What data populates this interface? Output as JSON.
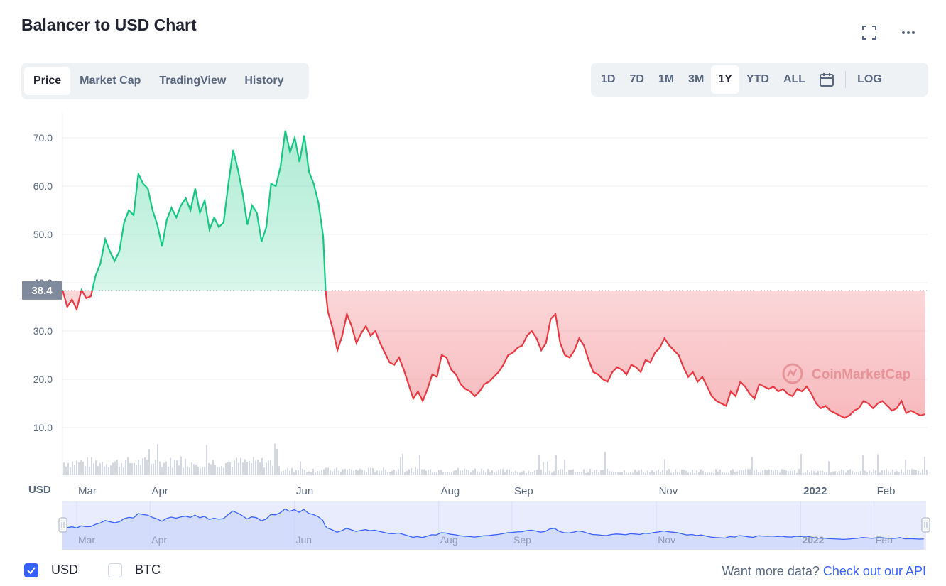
{
  "header": {
    "title": "Balancer to USD Chart",
    "fullscreen_icon": "fullscreen-icon",
    "more_icon": "more-dots-icon"
  },
  "tabs": [
    {
      "label": "Price",
      "active": true
    },
    {
      "label": "Market Cap",
      "active": false
    },
    {
      "label": "TradingView",
      "active": false
    },
    {
      "label": "History",
      "active": false
    }
  ],
  "ranges": [
    {
      "label": "1D",
      "active": false
    },
    {
      "label": "7D",
      "active": false
    },
    {
      "label": "1M",
      "active": false
    },
    {
      "label": "3M",
      "active": false
    },
    {
      "label": "1Y",
      "active": true
    },
    {
      "label": "YTD",
      "active": false
    },
    {
      "label": "ALL",
      "active": false
    }
  ],
  "calendar_icon": "calendar-icon",
  "log_label": "LOG",
  "chart_data": {
    "type": "area",
    "y_unit": "USD",
    "reference_value": 38.4,
    "reference_label": "38.4",
    "ylim": [
      0,
      75
    ],
    "y_ticks": [
      10,
      20,
      30,
      40,
      50,
      60,
      70
    ],
    "y_tick_labels": [
      "10.0",
      "20.0",
      "30.0",
      "40.0",
      "50.0",
      "60.0",
      "70.0"
    ],
    "x_tick_labels": [
      "Mar",
      "Apr",
      "Jun",
      "Aug",
      "Sep",
      "Nov",
      "2022",
      "Feb"
    ],
    "x_tick_dates": [
      "2021-03-01",
      "2021-04-01",
      "2021-06-01",
      "2021-08-01",
      "2021-09-01",
      "2021-11-01",
      "2022-01-01",
      "2022-02-01"
    ],
    "x_range": [
      "2021-02-23",
      "2022-02-23"
    ],
    "up_color": "#16c784",
    "down_color": "#ea3943",
    "watermark": "CoinMarketCap",
    "series": [
      {
        "points": [
          [
            "2021-02-23",
            38.5
          ],
          [
            "2021-02-25",
            35.0
          ],
          [
            "2021-02-27",
            36.5
          ],
          [
            "2021-03-01",
            34.5
          ],
          [
            "2021-03-03",
            38.5
          ],
          [
            "2021-03-05",
            36.8
          ],
          [
            "2021-03-07",
            37.2
          ],
          [
            "2021-03-09",
            41.5
          ],
          [
            "2021-03-11",
            44.0
          ],
          [
            "2021-03-13",
            49.0
          ],
          [
            "2021-03-15",
            46.5
          ],
          [
            "2021-03-17",
            44.5
          ],
          [
            "2021-03-19",
            46.5
          ],
          [
            "2021-03-21",
            52.5
          ],
          [
            "2021-03-23",
            55.0
          ],
          [
            "2021-03-25",
            54.0
          ],
          [
            "2021-03-27",
            62.5
          ],
          [
            "2021-03-29",
            60.5
          ],
          [
            "2021-03-31",
            59.5
          ],
          [
            "2021-04-02",
            55.0
          ],
          [
            "2021-04-04",
            52.0
          ],
          [
            "2021-04-06",
            47.5
          ],
          [
            "2021-04-08",
            53.0
          ],
          [
            "2021-04-10",
            55.5
          ],
          [
            "2021-04-12",
            53.5
          ],
          [
            "2021-04-14",
            56.0
          ],
          [
            "2021-04-16",
            57.5
          ],
          [
            "2021-04-18",
            55.0
          ],
          [
            "2021-04-20",
            59.5
          ],
          [
            "2021-04-22",
            54.5
          ],
          [
            "2021-04-24",
            57.0
          ],
          [
            "2021-04-26",
            51.0
          ],
          [
            "2021-04-28",
            53.5
          ],
          [
            "2021-04-30",
            51.5
          ],
          [
            "2021-05-02",
            52.5
          ],
          [
            "2021-05-04",
            60.5
          ],
          [
            "2021-05-06",
            67.5
          ],
          [
            "2021-05-08",
            63.5
          ],
          [
            "2021-05-10",
            58.5
          ],
          [
            "2021-05-12",
            52.0
          ],
          [
            "2021-05-14",
            56.0
          ],
          [
            "2021-05-16",
            54.5
          ],
          [
            "2021-05-18",
            48.5
          ],
          [
            "2021-05-20",
            51.5
          ],
          [
            "2021-05-22",
            60.5
          ],
          [
            "2021-05-24",
            60.0
          ],
          [
            "2021-05-26",
            64.0
          ],
          [
            "2021-05-28",
            71.5
          ],
          [
            "2021-05-30",
            67.0
          ],
          [
            "2021-06-01",
            70.0
          ],
          [
            "2021-06-03",
            65.0
          ],
          [
            "2021-06-05",
            70.5
          ],
          [
            "2021-06-07",
            63.0
          ],
          [
            "2021-06-09",
            60.5
          ],
          [
            "2021-06-11",
            56.5
          ],
          [
            "2021-06-13",
            49.5
          ],
          [
            "2021-06-14",
            38.5
          ],
          [
            "2021-06-15",
            34.0
          ],
          [
            "2021-06-17",
            30.5
          ],
          [
            "2021-06-19",
            26.0
          ],
          [
            "2021-06-21",
            29.0
          ],
          [
            "2021-06-23",
            33.5
          ],
          [
            "2021-06-25",
            31.0
          ],
          [
            "2021-06-27",
            27.5
          ],
          [
            "2021-06-29",
            29.5
          ],
          [
            "2021-07-01",
            31.0
          ],
          [
            "2021-07-03",
            29.0
          ],
          [
            "2021-07-05",
            30.0
          ],
          [
            "2021-07-07",
            27.5
          ],
          [
            "2021-07-09",
            25.5
          ],
          [
            "2021-07-11",
            23.5
          ],
          [
            "2021-07-13",
            23.0
          ],
          [
            "2021-07-15",
            24.5
          ],
          [
            "2021-07-17",
            22.0
          ],
          [
            "2021-07-19",
            19.0
          ],
          [
            "2021-07-21",
            16.0
          ],
          [
            "2021-07-23",
            17.5
          ],
          [
            "2021-07-25",
            15.5
          ],
          [
            "2021-07-27",
            18.0
          ],
          [
            "2021-07-29",
            21.0
          ],
          [
            "2021-07-31",
            20.5
          ],
          [
            "2021-08-02",
            25.0
          ],
          [
            "2021-08-04",
            24.5
          ],
          [
            "2021-08-06",
            22.0
          ],
          [
            "2021-08-08",
            21.0
          ],
          [
            "2021-08-10",
            19.0
          ],
          [
            "2021-08-12",
            18.0
          ],
          [
            "2021-08-14",
            17.5
          ],
          [
            "2021-08-16",
            16.5
          ],
          [
            "2021-08-18",
            17.5
          ],
          [
            "2021-08-20",
            19.0
          ],
          [
            "2021-08-22",
            19.5
          ],
          [
            "2021-08-24",
            20.5
          ],
          [
            "2021-08-26",
            21.5
          ],
          [
            "2021-08-28",
            23.0
          ],
          [
            "2021-08-30",
            25.0
          ],
          [
            "2021-09-01",
            25.5
          ],
          [
            "2021-09-03",
            26.5
          ],
          [
            "2021-09-05",
            27.0
          ],
          [
            "2021-09-07",
            29.0
          ],
          [
            "2021-09-09",
            30.0
          ],
          [
            "2021-09-11",
            28.5
          ],
          [
            "2021-09-13",
            26.0
          ],
          [
            "2021-09-15",
            27.5
          ],
          [
            "2021-09-17",
            32.5
          ],
          [
            "2021-09-19",
            33.5
          ],
          [
            "2021-09-21",
            27.5
          ],
          [
            "2021-09-23",
            25.0
          ],
          [
            "2021-09-25",
            24.5
          ],
          [
            "2021-09-27",
            26.0
          ],
          [
            "2021-09-29",
            28.5
          ],
          [
            "2021-10-01",
            27.0
          ],
          [
            "2021-10-03",
            24.0
          ],
          [
            "2021-10-05",
            21.5
          ],
          [
            "2021-10-07",
            21.0
          ],
          [
            "2021-10-09",
            20.0
          ],
          [
            "2021-10-11",
            19.5
          ],
          [
            "2021-10-13",
            21.5
          ],
          [
            "2021-10-15",
            22.5
          ],
          [
            "2021-10-17",
            22.0
          ],
          [
            "2021-10-19",
            21.0
          ],
          [
            "2021-10-21",
            23.0
          ],
          [
            "2021-10-23",
            22.5
          ],
          [
            "2021-10-25",
            21.5
          ],
          [
            "2021-10-27",
            24.0
          ],
          [
            "2021-10-29",
            23.5
          ],
          [
            "2021-10-31",
            25.5
          ],
          [
            "2021-11-02",
            26.5
          ],
          [
            "2021-11-04",
            28.5
          ],
          [
            "2021-11-06",
            27.0
          ],
          [
            "2021-11-08",
            26.0
          ],
          [
            "2021-11-10",
            25.0
          ],
          [
            "2021-11-12",
            22.5
          ],
          [
            "2021-11-14",
            20.5
          ],
          [
            "2021-11-16",
            21.5
          ],
          [
            "2021-11-18",
            19.5
          ],
          [
            "2021-11-20",
            20.5
          ],
          [
            "2021-11-22",
            18.5
          ],
          [
            "2021-11-24",
            16.5
          ],
          [
            "2021-11-26",
            15.5
          ],
          [
            "2021-11-28",
            15.0
          ],
          [
            "2021-11-30",
            14.5
          ],
          [
            "2021-12-02",
            17.5
          ],
          [
            "2021-12-04",
            16.5
          ],
          [
            "2021-12-06",
            19.5
          ],
          [
            "2021-12-08",
            18.5
          ],
          [
            "2021-12-10",
            17.0
          ],
          [
            "2021-12-12",
            16.0
          ],
          [
            "2021-12-14",
            19.0
          ],
          [
            "2021-12-16",
            18.5
          ],
          [
            "2021-12-18",
            18.0
          ],
          [
            "2021-12-20",
            18.5
          ],
          [
            "2021-12-22",
            17.5
          ],
          [
            "2021-12-24",
            18.0
          ],
          [
            "2021-12-26",
            17.0
          ],
          [
            "2021-12-28",
            16.5
          ],
          [
            "2021-12-30",
            18.0
          ],
          [
            "2022-01-01",
            17.5
          ],
          [
            "2022-01-03",
            18.5
          ],
          [
            "2022-01-05",
            17.0
          ],
          [
            "2022-01-07",
            15.0
          ],
          [
            "2022-01-09",
            14.0
          ],
          [
            "2022-01-11",
            14.5
          ],
          [
            "2022-01-13",
            13.5
          ],
          [
            "2022-01-15",
            13.0
          ],
          [
            "2022-01-17",
            12.5
          ],
          [
            "2022-01-19",
            12.0
          ],
          [
            "2022-01-21",
            12.5
          ],
          [
            "2022-01-23",
            13.5
          ],
          [
            "2022-01-25",
            14.0
          ],
          [
            "2022-01-27",
            15.5
          ],
          [
            "2022-01-29",
            15.0
          ],
          [
            "2022-01-31",
            14.0
          ],
          [
            "2022-02-02",
            15.0
          ],
          [
            "2022-02-04",
            15.5
          ],
          [
            "2022-02-06",
            14.5
          ],
          [
            "2022-02-08",
            13.5
          ],
          [
            "2022-02-10",
            14.0
          ],
          [
            "2022-02-12",
            15.5
          ],
          [
            "2022-02-14",
            13.0
          ],
          [
            "2022-02-16",
            13.5
          ],
          [
            "2022-02-18",
            13.0
          ],
          [
            "2022-02-20",
            12.5
          ],
          [
            "2022-02-22",
            12.8
          ]
        ]
      }
    ]
  },
  "navigator": {
    "x_tick_labels": [
      "Mar",
      "Apr",
      "Jun",
      "Aug",
      "Sep",
      "Nov",
      "2022",
      "Feb"
    ]
  },
  "footer": {
    "currencies": [
      {
        "label": "USD",
        "checked": true
      },
      {
        "label": "BTC",
        "checked": false
      }
    ],
    "api_prompt": "Want more data?",
    "api_link": "Check out our API"
  }
}
